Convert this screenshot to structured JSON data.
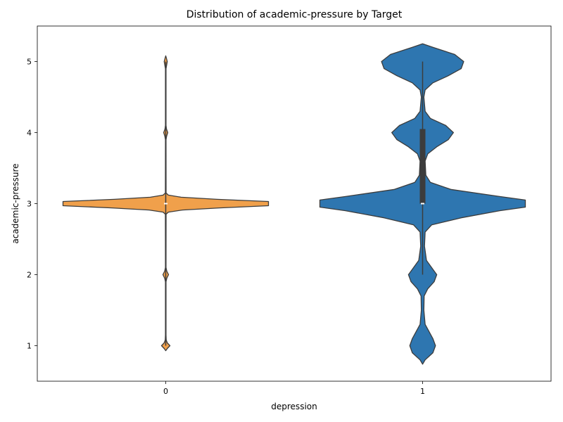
{
  "chart_data": {
    "type": "violin",
    "title": "Distribution of academic-pressure by Target",
    "xlabel": "depression",
    "ylabel": "academic-pressure",
    "categories": [
      "0",
      "1"
    ],
    "ylim": [
      0.5,
      5.5
    ],
    "yticks": [
      1,
      2,
      3,
      4,
      5
    ],
    "grid": false,
    "colors": {
      "0": "#f0a04b",
      "1": "#2e76b0",
      "outline": "#3c3c3c",
      "box": "#3c3c3c"
    },
    "series": [
      {
        "category": "0",
        "box": {
          "whisker_low": 1,
          "q1": 3,
          "median": 3,
          "q3": 3,
          "whisker_high": 5
        },
        "density": [
          [
            0.93,
            0.0
          ],
          [
            0.96,
            0.012
          ],
          [
            1.0,
            0.033
          ],
          [
            1.04,
            0.012
          ],
          [
            1.08,
            0.004
          ],
          [
            1.15,
            0.002
          ],
          [
            1.9,
            0.002
          ],
          [
            1.95,
            0.008
          ],
          [
            2.0,
            0.022
          ],
          [
            2.05,
            0.008
          ],
          [
            2.1,
            0.002
          ],
          [
            2.85,
            0.003
          ],
          [
            2.88,
            0.02
          ],
          [
            2.91,
            0.13
          ],
          [
            2.94,
            0.42
          ],
          [
            2.97,
            0.8
          ],
          [
            3.0,
            0.8
          ],
          [
            3.03,
            0.8
          ],
          [
            3.06,
            0.4
          ],
          [
            3.09,
            0.12
          ],
          [
            3.12,
            0.02
          ],
          [
            3.15,
            0.003
          ],
          [
            3.9,
            0.002
          ],
          [
            3.95,
            0.007
          ],
          [
            4.0,
            0.016
          ],
          [
            4.05,
            0.006
          ],
          [
            4.1,
            0.002
          ],
          [
            4.9,
            0.002
          ],
          [
            4.95,
            0.007
          ],
          [
            5.0,
            0.012
          ],
          [
            5.05,
            0.005
          ],
          [
            5.08,
            0.0
          ]
        ]
      },
      {
        "category": "1",
        "box": {
          "whisker_low": 2,
          "q1": 3,
          "median": 3,
          "q3": 4.05,
          "whisker_high": 5
        },
        "density": [
          [
            0.74,
            0.0
          ],
          [
            0.8,
            0.02
          ],
          [
            0.9,
            0.08
          ],
          [
            1.0,
            0.1
          ],
          [
            1.1,
            0.08
          ],
          [
            1.2,
            0.05
          ],
          [
            1.3,
            0.02
          ],
          [
            1.5,
            0.01
          ],
          [
            1.7,
            0.012
          ],
          [
            1.8,
            0.04
          ],
          [
            1.9,
            0.09
          ],
          [
            2.0,
            0.11
          ],
          [
            2.1,
            0.07
          ],
          [
            2.2,
            0.03
          ],
          [
            2.4,
            0.015
          ],
          [
            2.6,
            0.02
          ],
          [
            2.7,
            0.07
          ],
          [
            2.8,
            0.3
          ],
          [
            2.9,
            0.6
          ],
          [
            2.95,
            0.8
          ],
          [
            3.0,
            0.8
          ],
          [
            3.05,
            0.8
          ],
          [
            3.1,
            0.6
          ],
          [
            3.2,
            0.22
          ],
          [
            3.3,
            0.06
          ],
          [
            3.4,
            0.025
          ],
          [
            3.6,
            0.02
          ],
          [
            3.7,
            0.04
          ],
          [
            3.8,
            0.11
          ],
          [
            3.9,
            0.2
          ],
          [
            4.0,
            0.24
          ],
          [
            4.1,
            0.18
          ],
          [
            4.2,
            0.06
          ],
          [
            4.3,
            0.02
          ],
          [
            4.5,
            0.01
          ],
          [
            4.6,
            0.02
          ],
          [
            4.7,
            0.08
          ],
          [
            4.8,
            0.2
          ],
          [
            4.9,
            0.3
          ],
          [
            5.0,
            0.32
          ],
          [
            5.1,
            0.25
          ],
          [
            5.2,
            0.08
          ],
          [
            5.25,
            0.0
          ]
        ]
      }
    ]
  }
}
